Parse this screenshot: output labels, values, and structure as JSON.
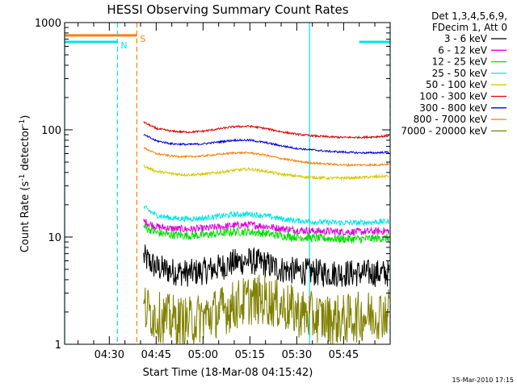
{
  "chart_data": {
    "type": "line",
    "title": "HESSI Observing Summary Count Rates",
    "xlabel": "Start Time (18-Mar-08 04:15:42)",
    "ylabel_parts": [
      "Count Rate (s",
      "-1",
      " detector",
      "-1",
      ")"
    ],
    "ylabel": "Count Rate (s^-1 detector^-1)",
    "y_scale": "log",
    "ylim": [
      1,
      1000
    ],
    "y_ticks": [
      1,
      10,
      100,
      1000
    ],
    "y_tick_labels": [
      "1",
      "10",
      "100",
      "1000"
    ],
    "xlim_minutes": [
      15.7,
      119.9
    ],
    "x_tick_minutes": [
      30,
      45,
      60,
      75,
      90,
      105
    ],
    "x_tick_labels": [
      "04:30",
      "04:45",
      "05:00",
      "05:15",
      "05:30",
      "05:45"
    ],
    "legend_header": [
      "Det 1,3,4,5,6,9,",
      "FDecim 1, Att 0"
    ],
    "legend_placement": "right",
    "footer": "15-Mar-2010 17:15",
    "flags": [
      {
        "label": "S",
        "color": "#ff7f00",
        "y": 760,
        "x_start_min": 15.7,
        "x_end_min": 38.8
      },
      {
        "label": "N",
        "color": "#00e5e5",
        "y": 660,
        "x_start_min": 15.7,
        "x_end_min": 32.6
      },
      {
        "label": "",
        "color": "#00e5e5",
        "y": 660,
        "x_start_min": 110.0,
        "x_end_min": 119.9
      }
    ],
    "vertical_lines": [
      {
        "color": "#00e5e5",
        "style": "solid",
        "x_min": 15.7
      },
      {
        "color": "#00e5e5",
        "style": "dashed",
        "x_min": 32.6
      },
      {
        "color": "#ff7f00",
        "style": "dashed",
        "x_min": 38.8
      },
      {
        "color": "#00e5e5",
        "style": "solid",
        "x_min": 94.1
      },
      {
        "color": "#00e5e5",
        "style": "dashed",
        "x_min": 119.9
      }
    ],
    "series": [
      {
        "name": "3 - 6 keV",
        "color": "#000000",
        "x_minutes": [
          41,
          45,
          50,
          55,
          60,
          65,
          70,
          75,
          80,
          85,
          90,
          95,
          100,
          105,
          110,
          115,
          119.5
        ],
        "values": [
          6.5,
          5.2,
          4.8,
          4.6,
          4.8,
          5.2,
          5.8,
          6.0,
          5.6,
          5.0,
          4.8,
          4.7,
          4.6,
          4.6,
          4.6,
          4.6,
          4.6
        ],
        "noise": 0.3
      },
      {
        "name": "6 - 12 keV",
        "color": "#e000e0",
        "x_minutes": [
          41,
          45,
          50,
          55,
          60,
          65,
          70,
          75,
          80,
          85,
          90,
          95,
          100,
          105,
          110,
          115,
          119.5
        ],
        "values": [
          14.0,
          12.5,
          12.0,
          11.8,
          12.0,
          12.4,
          12.8,
          13.0,
          12.6,
          12.0,
          11.6,
          11.4,
          11.3,
          11.2,
          11.2,
          11.3,
          11.4
        ],
        "noise": 0.08
      },
      {
        "name": "12 - 25 keV",
        "color": "#00e000",
        "x_minutes": [
          41,
          45,
          50,
          55,
          60,
          65,
          70,
          75,
          80,
          85,
          90,
          95,
          100,
          105,
          110,
          115,
          119.5
        ],
        "values": [
          12.5,
          11.0,
          10.5,
          10.3,
          10.4,
          10.8,
          11.2,
          11.2,
          10.8,
          10.3,
          10.0,
          9.8,
          9.7,
          9.6,
          9.6,
          9.7,
          9.8
        ],
        "noise": 0.09
      },
      {
        "name": "25 - 50 keV",
        "color": "#00e5e5",
        "x_minutes": [
          41,
          45,
          50,
          55,
          60,
          65,
          70,
          75,
          80,
          85,
          90,
          95,
          100,
          105,
          110,
          115,
          119.5
        ],
        "values": [
          19.0,
          16.0,
          15.0,
          14.8,
          15.0,
          15.6,
          16.2,
          16.4,
          15.8,
          14.8,
          14.2,
          13.9,
          13.7,
          13.6,
          13.6,
          13.8,
          14.0
        ],
        "noise": 0.06
      },
      {
        "name": "50 - 100 keV",
        "color": "#d4c800",
        "x_minutes": [
          41,
          45,
          50,
          55,
          60,
          65,
          70,
          75,
          80,
          85,
          90,
          95,
          100,
          105,
          110,
          115,
          119.5
        ],
        "values": [
          46,
          41,
          39,
          38,
          38.5,
          40,
          42,
          43,
          41,
          38.5,
          37,
          36,
          35.5,
          35.5,
          35.8,
          36.5,
          37
        ],
        "noise": 0.03
      },
      {
        "name": "100 - 300 keV",
        "color": "#e00000",
        "x_minutes": [
          41,
          45,
          50,
          55,
          60,
          65,
          70,
          75,
          80,
          85,
          90,
          95,
          100,
          105,
          110,
          115,
          119.5
        ],
        "values": [
          118,
          103,
          97,
          95,
          97,
          102,
          107,
          108,
          103,
          96,
          91,
          88,
          86,
          85,
          85,
          86,
          88
        ],
        "noise": 0.02
      },
      {
        "name": "300 - 800 keV",
        "color": "#0000e0",
        "x_minutes": [
          41,
          45,
          50,
          55,
          60,
          65,
          70,
          75,
          80,
          85,
          90,
          95,
          100,
          105,
          110,
          115,
          119.5
        ],
        "values": [
          90,
          79,
          74,
          73,
          74,
          77,
          80,
          80,
          76,
          71,
          67,
          65,
          63,
          62,
          61,
          61,
          62
        ],
        "noise": 0.02
      },
      {
        "name": "800 - 7000 keV",
        "color": "#ff7f00",
        "x_minutes": [
          41,
          45,
          50,
          55,
          60,
          65,
          70,
          75,
          80,
          85,
          90,
          95,
          100,
          105,
          110,
          115,
          119.5
        ],
        "values": [
          68,
          60,
          57,
          56,
          57,
          59,
          61,
          61,
          58,
          54,
          51,
          49,
          48,
          47,
          47,
          47,
          48
        ],
        "noise": 0.02
      },
      {
        "name": "7000 - 20000 keV",
        "color": "#808000",
        "x_minutes": [
          41,
          45,
          50,
          55,
          60,
          65,
          70,
          75,
          80,
          85,
          90,
          95,
          100,
          105,
          110,
          115,
          119.5
        ],
        "values": [
          2.2,
          1.8,
          1.7,
          1.6,
          1.8,
          2.0,
          2.3,
          2.6,
          2.6,
          2.3,
          2.0,
          1.8,
          1.7,
          1.7,
          1.8,
          1.9,
          2.0
        ],
        "noise": 0.55
      }
    ]
  }
}
